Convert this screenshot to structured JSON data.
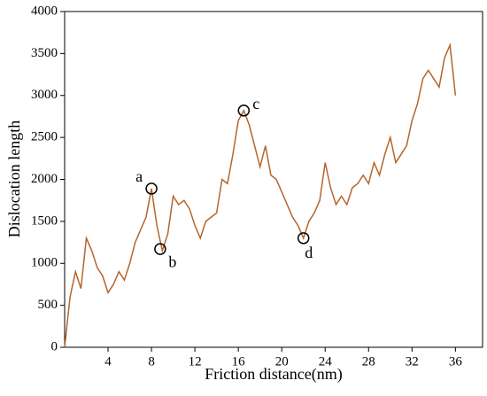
{
  "chart_data": {
    "type": "line",
    "xlabel": "Friction distance(nm)",
    "ylabel": "Dislocation length",
    "x": [
      0,
      0.5,
      1,
      1.5,
      2,
      2.5,
      3,
      3.5,
      4,
      4.5,
      5,
      5.5,
      6,
      6.5,
      7,
      7.5,
      8,
      8.5,
      9,
      9.5,
      10,
      10.5,
      11,
      11.5,
      12,
      12.5,
      13,
      13.5,
      14,
      14.5,
      15,
      15.5,
      16,
      16.5,
      17,
      17.5,
      18,
      18.5,
      19,
      19.5,
      20,
      20.5,
      21,
      21.5,
      22,
      22.5,
      23,
      23.5,
      24,
      24.5,
      25,
      25.5,
      26,
      26.5,
      27,
      27.5,
      28,
      28.5,
      29,
      29.5,
      30,
      30.5,
      31,
      31.5,
      32,
      32.5,
      33,
      33.5,
      34,
      34.5,
      35,
      35.5,
      36
    ],
    "series": [
      {
        "name": "Dislocation length",
        "color": "#b5652b",
        "values": [
          0,
          600,
          900,
          700,
          1300,
          1150,
          950,
          850,
          650,
          750,
          900,
          800,
          1000,
          1250,
          1400,
          1550,
          1890,
          1450,
          1150,
          1350,
          1800,
          1700,
          1750,
          1650,
          1450,
          1300,
          1500,
          1550,
          1600,
          2000,
          1950,
          2300,
          2700,
          2820,
          2650,
          2400,
          2150,
          2400,
          2050,
          2000,
          1850,
          1700,
          1550,
          1450,
          1300,
          1500,
          1600,
          1750,
          2200,
          1900,
          1700,
          1800,
          1700,
          1900,
          1950,
          2050,
          1950,
          2200,
          2050,
          2300,
          2500,
          2200,
          2300,
          2400,
          2700,
          2900,
          3200,
          3300,
          3200,
          3100,
          3450,
          3600,
          3000
        ]
      }
    ],
    "annotations": [
      {
        "text": "a",
        "x": 8,
        "y": 1890
      },
      {
        "text": "b",
        "x": 8.8,
        "y": 1170
      },
      {
        "text": "c",
        "x": 16.5,
        "y": 2820
      },
      {
        "text": "d",
        "x": 22,
        "y": 1300
      }
    ],
    "xlim": [
      0,
      38.5
    ],
    "xticks": [
      4,
      8,
      12,
      16,
      20,
      24,
      28,
      32,
      36
    ],
    "ylim": [
      0,
      4000
    ],
    "yticks": [
      0,
      500,
      1000,
      1500,
      2000,
      2500,
      3000,
      3500,
      4000
    ]
  }
}
